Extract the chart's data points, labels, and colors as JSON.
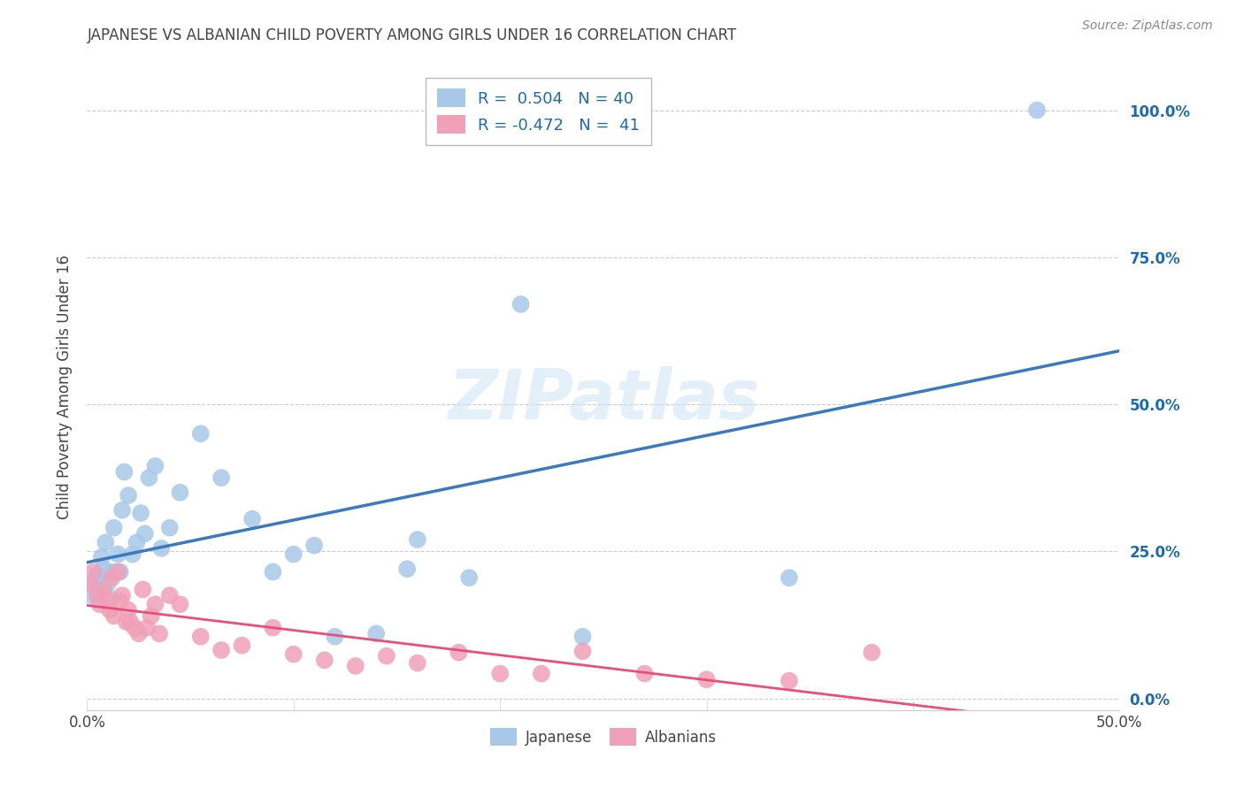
{
  "title": "JAPANESE VS ALBANIAN CHILD POVERTY AMONG GIRLS UNDER 16 CORRELATION CHART",
  "source": "Source: ZipAtlas.com",
  "ylabel": "Child Poverty Among Girls Under 16",
  "watermark": "ZIPatlas",
  "xlim": [
    0.0,
    0.5
  ],
  "ylim": [
    -0.02,
    1.08
  ],
  "ytick_labels": [
    "0.0%",
    "25.0%",
    "50.0%",
    "75.0%",
    "100.0%"
  ],
  "ytick_positions": [
    0.0,
    0.25,
    0.5,
    0.75,
    1.0
  ],
  "japanese_R": 0.504,
  "japanese_N": 40,
  "albanian_R": -0.472,
  "albanian_N": 41,
  "japanese_color": "#a8c8e8",
  "albanian_color": "#f0a0b8",
  "japanese_line_color": "#3a7abf",
  "albanian_line_color": "#e8507a",
  "title_color": "#444444",
  "legend_R_color": "#1a6bb5",
  "ytick_color": "#1a6bb5",
  "japanese_scatter_x": [
    0.002,
    0.004,
    0.005,
    0.006,
    0.007,
    0.008,
    0.009,
    0.01,
    0.011,
    0.012,
    0.013,
    0.015,
    0.016,
    0.017,
    0.018,
    0.02,
    0.022,
    0.024,
    0.026,
    0.028,
    0.03,
    0.033,
    0.036,
    0.04,
    0.045,
    0.055,
    0.065,
    0.08,
    0.09,
    0.1,
    0.11,
    0.12,
    0.14,
    0.155,
    0.16,
    0.185,
    0.21,
    0.24,
    0.34,
    0.46
  ],
  "japanese_scatter_y": [
    0.175,
    0.195,
    0.21,
    0.185,
    0.24,
    0.22,
    0.265,
    0.195,
    0.17,
    0.215,
    0.29,
    0.245,
    0.215,
    0.32,
    0.385,
    0.345,
    0.245,
    0.265,
    0.315,
    0.28,
    0.375,
    0.395,
    0.255,
    0.29,
    0.35,
    0.45,
    0.375,
    0.305,
    0.215,
    0.245,
    0.26,
    0.105,
    0.11,
    0.22,
    0.27,
    0.205,
    0.67,
    0.105,
    0.205,
    1.0
  ],
  "albanian_scatter_x": [
    0.001,
    0.003,
    0.005,
    0.006,
    0.008,
    0.009,
    0.011,
    0.012,
    0.013,
    0.015,
    0.016,
    0.017,
    0.019,
    0.02,
    0.021,
    0.023,
    0.025,
    0.027,
    0.029,
    0.031,
    0.033,
    0.035,
    0.04,
    0.045,
    0.055,
    0.065,
    0.075,
    0.09,
    0.1,
    0.115,
    0.13,
    0.145,
    0.16,
    0.18,
    0.2,
    0.22,
    0.24,
    0.27,
    0.3,
    0.34,
    0.38
  ],
  "albanian_scatter_y": [
    0.195,
    0.215,
    0.175,
    0.16,
    0.185,
    0.17,
    0.15,
    0.205,
    0.14,
    0.215,
    0.165,
    0.175,
    0.13,
    0.15,
    0.13,
    0.12,
    0.11,
    0.185,
    0.12,
    0.14,
    0.16,
    0.11,
    0.175,
    0.16,
    0.105,
    0.082,
    0.09,
    0.12,
    0.075,
    0.065,
    0.055,
    0.072,
    0.06,
    0.078,
    0.042,
    0.042,
    0.08,
    0.042,
    0.032,
    0.03,
    0.078
  ]
}
